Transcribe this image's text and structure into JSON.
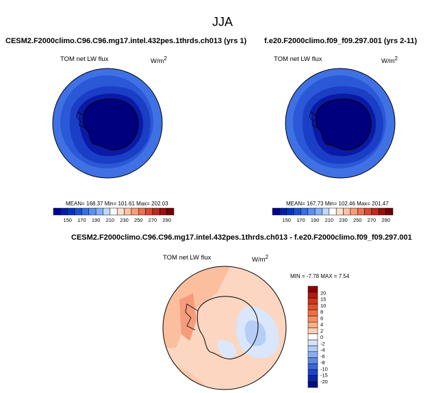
{
  "page": {
    "season": "JJA",
    "units_prefix": "W/m",
    "units_exp": "2"
  },
  "chart_data": [
    {
      "type": "heatmap",
      "projection": "south-polar stereographic",
      "title": "CESM2.F2000climo.C96.C96.mg17.intel.432pes.1thrds.ch013 (yrs 1)",
      "variable": "TOM net LW flux",
      "units": "W/m2",
      "stats": "MEAN= 168.37   Min= 101.61   Max= 202.03",
      "mean": 168.37,
      "min": 101.61,
      "max": 202.03,
      "colorbar_ticks": [
        "150",
        "170",
        "190",
        "210",
        "230",
        "250",
        "270",
        "290"
      ],
      "colorbar_colors": [
        "#00008f",
        "#001ea8",
        "#0033c4",
        "#1a4fd6",
        "#3a6fe3",
        "#5c8fef",
        "#86b0f6",
        "#c0d8fc",
        "#ffffff",
        "#fde0cc",
        "#fbc2a4",
        "#f59c7b",
        "#ea7356",
        "#d94a36",
        "#bd2a1e",
        "#981010",
        "#6e0005"
      ]
    },
    {
      "type": "heatmap",
      "projection": "south-polar stereographic",
      "title": "f.e20.F2000climo.f09_f09.297.001 (yrs 2-11)",
      "variable": "TOM net LW flux",
      "units": "W/m2",
      "stats": "MEAN= 167.73   Min= 102.46   Max= 201.47",
      "mean": 167.73,
      "min": 102.46,
      "max": 201.47,
      "colorbar_ticks": [
        "150",
        "170",
        "190",
        "210",
        "230",
        "250",
        "270",
        "290"
      ]
    },
    {
      "type": "heatmap",
      "projection": "south-polar stereographic",
      "title": "CESM2.F2000climo.C96.C96.mg17.intel.432pes.1thrds.ch013 - f.e20.F2000climo.f09_f09.297.001",
      "variable": "TOM net LW flux",
      "units": "W/m2",
      "stats": "MIN =  -7.78 MAX =   7.54",
      "min": -7.78,
      "max": 7.54,
      "colorbar_ticks": [
        "20",
        "15",
        "10",
        "8",
        "6",
        "4",
        "2",
        "0",
        "-2",
        "-4",
        "-6",
        "-8",
        "-10",
        "-15",
        "-20"
      ],
      "colorbar_colors": [
        "#8b0000",
        "#b11a0e",
        "#d0351c",
        "#e3502c",
        "#ef6f44",
        "#f68d63",
        "#fbad88",
        "#fdd0b6",
        "#ffffff",
        "#d5e4fb",
        "#b1ccf6",
        "#88adf0",
        "#5f8be6",
        "#3b68d9",
        "#1e46c4",
        "#0b28a4",
        "#000f80"
      ]
    }
  ]
}
